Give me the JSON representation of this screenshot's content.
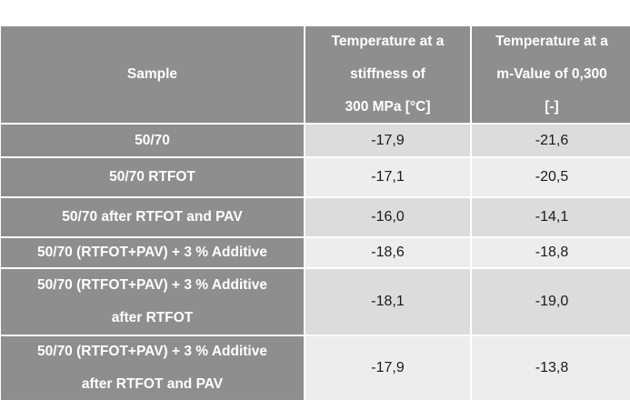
{
  "table": {
    "headers": [
      [
        "Sample"
      ],
      [
        "Temperature at a",
        "stiffness of",
        "300 MPa [°C]"
      ],
      [
        "Temperature at a",
        "m-Value of 0,300",
        "[-]"
      ]
    ],
    "rows": [
      {
        "sample": [
          "50/70"
        ],
        "stiffness_temp": "-17,9",
        "mvalue_temp": "-21,6"
      },
      {
        "sample": [
          "50/70 RTFOT"
        ],
        "stiffness_temp": "-17,1",
        "mvalue_temp": "-20,5"
      },
      {
        "sample": [
          "50/70 after RTFOT and PAV"
        ],
        "stiffness_temp": "-16,0",
        "mvalue_temp": "-14,1"
      },
      {
        "sample": [
          "50/70 (RTFOT+PAV) + 3 % Additive"
        ],
        "stiffness_temp": "-18,6",
        "mvalue_temp": "-18,8"
      },
      {
        "sample": [
          "50/70 (RTFOT+PAV) + 3 % Additive",
          "after RTFOT"
        ],
        "stiffness_temp": "-18,1",
        "mvalue_temp": "-19,0"
      },
      {
        "sample": [
          "50/70 (RTFOT+PAV) + 3 % Additive",
          "after RTFOT and PAV"
        ],
        "stiffness_temp": "-17,9",
        "mvalue_temp": "-13,8"
      }
    ]
  },
  "colors": {
    "header_bg": "#8e8e8e",
    "header_text": "#ffffff",
    "row_dark_bg": "#dcdcdc",
    "row_light_bg": "#ededed",
    "value_text": "#1a1a1a"
  }
}
